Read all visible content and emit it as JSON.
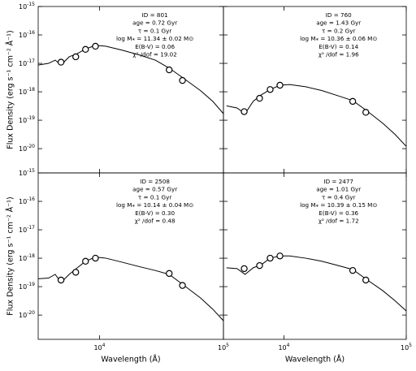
{
  "chart_data": [
    {
      "type": "line",
      "xlim": [
        3200,
        100000
      ],
      "ylim": [
        1.4e-21,
        1e-15
      ],
      "log": true,
      "color": "#000000",
      "yticks": [
        {
          "value": 1e-15,
          "label": "10^-15"
        },
        {
          "value": 1e-16,
          "label": "10^-16"
        },
        {
          "value": 1e-17,
          "label": "10^-17"
        },
        {
          "value": 1e-18,
          "label": "10^-18"
        },
        {
          "value": 1e-19,
          "label": "10^-19"
        },
        {
          "value": 1e-20,
          "label": "10^-20"
        }
      ],
      "ylabel": "Flux Density (erg s⁻¹ cm⁻² Å⁻¹)",
      "annotations": [
        "ID = 801",
        "age = 0.72 Gyr",
        "τ = 0.1 Gyr",
        "log M⁎ = 11.34 ± 0.02 M⊙",
        "E(B-V) = 0.06",
        "χ² /dof = 19.02"
      ],
      "series": [
        {
          "kind": "line",
          "x": [
            3200,
            3880,
            4390,
            4890,
            5690,
            6620,
            7710,
            9270,
            11300,
            15300,
            20800,
            28200,
            36500,
            48100,
            65300,
            82100,
            100000
          ],
          "values": [
            8.7e-18,
            1e-17,
            1.3e-17,
            8.7e-18,
            1.7e-17,
            2.2e-17,
            3.2e-17,
            4.3e-17,
            4e-17,
            2.9e-17,
            2e-17,
            1.3e-17,
            6.8e-18,
            2.9e-18,
            1.1e-18,
            4.6e-19,
            1.7e-19
          ]
        },
        {
          "kind": "marker",
          "x": [
            4890,
            6430,
            7710,
            9270,
            36500,
            46700
          ],
          "values": [
            1.1e-17,
            1.7e-17,
            3.1e-17,
            4e-17,
            5.9e-18,
            2.5e-18
          ]
        }
      ]
    },
    {
      "type": "line",
      "xlim": [
        3200,
        100000
      ],
      "ylim": [
        1.4e-21,
        1e-15
      ],
      "log": true,
      "color": "#000000",
      "annotations": [
        "ID = 760",
        "age = 1.43 Gyr",
        "τ = 0.2 Gyr",
        "log M⁎ = 10.36 ± 0.06 M⊙",
        "E(B-V) = 0.14",
        "χ² /dof = 1.96"
      ],
      "series": [
        {
          "kind": "line",
          "x": [
            3390,
            4130,
            4810,
            5600,
            6530,
            7710,
            9270,
            11100,
            15100,
            20500,
            27800,
            36500,
            47300,
            64300,
            80800,
            100000
          ],
          "values": [
            3.2e-19,
            2.7e-19,
            1.7e-19,
            4.6e-19,
            7.8e-19,
            1.2e-18,
            1.7e-18,
            1.8e-18,
            1.5e-18,
            1.1e-18,
            7.2e-19,
            4.9e-19,
            2.2e-19,
            7.8e-20,
            3.2e-20,
            1.2e-20
          ]
        },
        {
          "kind": "marker",
          "x": [
            4730,
            6320,
            7710,
            9270,
            36500,
            46700
          ],
          "values": [
            2e-19,
            5.9e-19,
            1.2e-18,
            1.7e-18,
            4.6e-19,
            1.9e-19
          ]
        }
      ]
    },
    {
      "type": "line",
      "xlim": [
        3200,
        100000
      ],
      "ylim": [
        1.4e-21,
        1e-15
      ],
      "log": true,
      "color": "#000000",
      "yticks": [
        {
          "value": 1e-15,
          "label": "10^-15"
        },
        {
          "value": 1e-16,
          "label": "10^-16"
        },
        {
          "value": 1e-17,
          "label": "10^-17"
        },
        {
          "value": 1e-18,
          "label": "10^-18"
        },
        {
          "value": 1e-19,
          "label": "10^-19"
        },
        {
          "value": 1e-20,
          "label": "10^-20"
        }
      ],
      "xticks": [
        {
          "value": 10000,
          "label": "10^4"
        },
        {
          "value": 100000,
          "label": "10^5"
        }
      ],
      "xlabel": "Wavelength (Å)",
      "ylabel": "Flux Density (erg s⁻¹ cm⁻² Å⁻¹)",
      "annotations": [
        "ID = 2508",
        "age = 0.57 Gyr",
        "τ = 0.1 Gyr",
        "log M⁎ = 10.14 ± 0.04 M⊙",
        "E(B-V) = 0.30",
        "χ² /dof = 0.48"
      ],
      "series": [
        {
          "kind": "line",
          "x": [
            3200,
            3880,
            4390,
            4890,
            5690,
            6620,
            7710,
            9270,
            11300,
            15300,
            20800,
            28200,
            36500,
            48100,
            65300,
            82100,
            100000
          ],
          "values": [
            1.9e-19,
            2e-19,
            2.7e-19,
            1.4e-19,
            2.7e-19,
            4.6e-19,
            7.8e-19,
            1.1e-18,
            1e-18,
            7.2e-19,
            5.1e-19,
            3.7e-19,
            2.7e-19,
            1.1e-19,
            4e-20,
            1.6e-20,
            6.3e-21
          ]
        },
        {
          "kind": "marker",
          "x": [
            4890,
            6430,
            7710,
            9270,
            36500,
            46700
          ],
          "values": [
            1.7e-19,
            3.2e-19,
            7.8e-19,
            1e-18,
            2.9e-19,
            1.1e-19
          ]
        }
      ]
    },
    {
      "type": "line",
      "xlim": [
        3200,
        100000
      ],
      "ylim": [
        1.4e-21,
        1e-15
      ],
      "log": true,
      "color": "#000000",
      "xticks": [
        {
          "value": 10000,
          "label": "10^4"
        },
        {
          "value": 100000,
          "label": "10^5"
        }
      ],
      "xlabel": "Wavelength (Å)",
      "annotations": [
        "ID = 2477",
        "age = 1.01 Gyr",
        "τ = 0.4 Gyr",
        "log M⁎ = 10.39 ± 0.15 M⊙",
        "E(B-V) = 0.36",
        "χ² /dof = 1.72"
      ],
      "series": [
        {
          "kind": "line",
          "x": [
            3390,
            4130,
            4810,
            5600,
            6530,
            7710,
            9270,
            11100,
            15100,
            20500,
            27800,
            36500,
            47300,
            64300,
            80800,
            100000
          ],
          "values": [
            4.6e-19,
            4.3e-19,
            2.7e-19,
            4.6e-19,
            5.9e-19,
            1e-18,
            1.2e-18,
            1.2e-18,
            1e-18,
            7.8e-19,
            5.5e-19,
            4e-19,
            1.8e-19,
            7.2e-20,
            3.2e-20,
            1.4e-20
          ]
        },
        {
          "kind": "marker",
          "x": [
            4730,
            6320,
            7710,
            9270,
            36500,
            46700
          ],
          "values": [
            4.3e-19,
            5.5e-19,
            1e-18,
            1.2e-18,
            3.7e-19,
            1.7e-19
          ]
        }
      ]
    }
  ]
}
